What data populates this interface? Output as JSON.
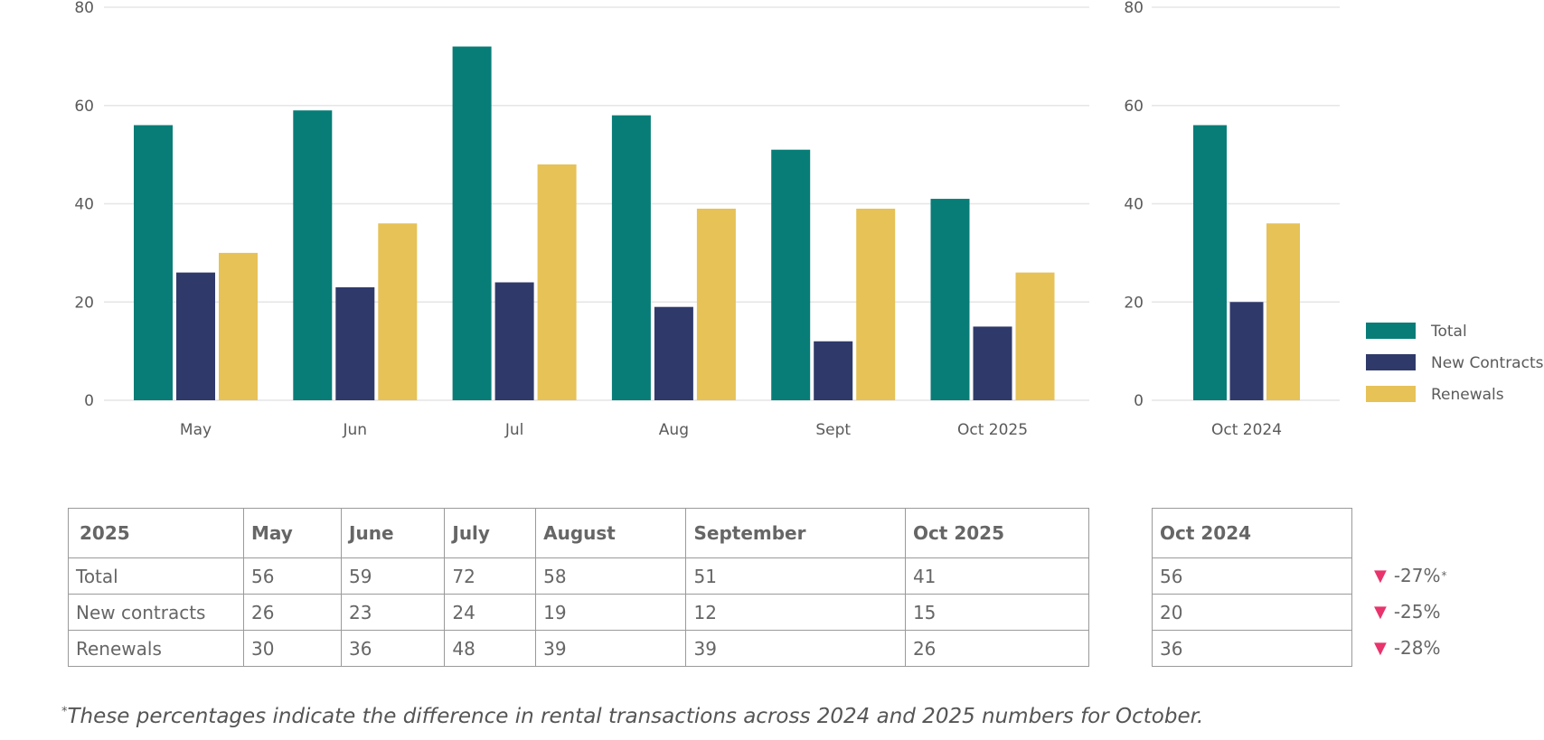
{
  "chart_data": [
    {
      "type": "bar",
      "categories": [
        "May",
        "Jun",
        "Jul",
        "Aug",
        "Sept",
        "Oct 2025"
      ],
      "series": [
        {
          "name": "Total",
          "values": [
            56,
            59,
            72,
            58,
            51,
            41
          ]
        },
        {
          "name": "New Contracts",
          "values": [
            26,
            23,
            24,
            19,
            12,
            15
          ]
        },
        {
          "name": "Renewals",
          "values": [
            30,
            36,
            48,
            39,
            39,
            26
          ]
        }
      ],
      "ylim": [
        0,
        80
      ],
      "yticks": [
        0,
        20,
        40,
        60,
        80
      ],
      "grid": true,
      "title": "",
      "xlabel": "",
      "ylabel": ""
    },
    {
      "type": "bar",
      "categories": [
        "Oct 2024"
      ],
      "series": [
        {
          "name": "Total",
          "values": [
            56
          ]
        },
        {
          "name": "New Contracts",
          "values": [
            20
          ]
        },
        {
          "name": "Renewals",
          "values": [
            36
          ]
        }
      ],
      "ylim": [
        0,
        80
      ],
      "yticks": [
        0,
        20,
        40,
        60,
        80
      ],
      "grid": true,
      "legend": "right",
      "title": "",
      "xlabel": "",
      "ylabel": ""
    }
  ],
  "colors": {
    "Total": "#087d78",
    "New Contracts": "#2f3a6b",
    "Renewals": "#e6c257",
    "down_arrow": "#e8336d"
  },
  "legend": [
    {
      "name": "Total"
    },
    {
      "name": "New Contracts"
    },
    {
      "name": "Renewals"
    }
  ],
  "main_table": {
    "header": [
      "2025",
      "May",
      "June",
      "July",
      "August",
      "September",
      "Oct 2025"
    ],
    "rows": [
      [
        "Total",
        "56",
        "59",
        "72",
        "58",
        "51",
        "41"
      ],
      [
        "New contracts",
        "26",
        "23",
        "24",
        "19",
        "12",
        "15"
      ],
      [
        "Renewals",
        "30",
        "36",
        "48",
        "39",
        "39",
        "26"
      ]
    ]
  },
  "side_table": {
    "header": "Oct 2024",
    "rows": [
      "56",
      "20",
      "36"
    ]
  },
  "changes": [
    {
      "arrow": "▼",
      "value": "-27%",
      "mark": "*"
    },
    {
      "arrow": "▼",
      "value": "-25%",
      "mark": ""
    },
    {
      "arrow": "▼",
      "value": "-28%",
      "mark": ""
    }
  ],
  "footnote": {
    "mark": "*",
    "text": "These percentages indicate the difference in rental transactions across 2024 and 2025 numbers for October."
  }
}
